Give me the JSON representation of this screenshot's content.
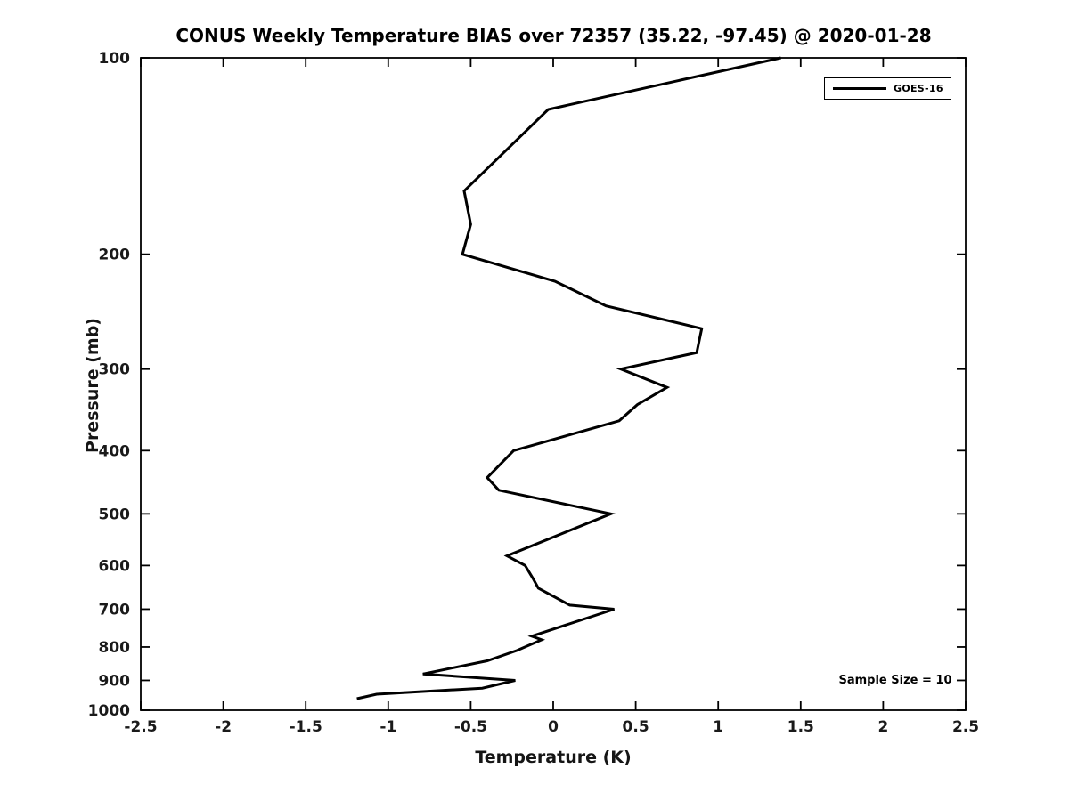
{
  "chart_data": {
    "type": "line",
    "title": "CONUS Weekly Temperature BIAS over 72357 (35.22, -97.45) @ 2020-01-28",
    "xlabel": "Temperature (K)",
    "ylabel": "Pressure (mb)",
    "xlim": [
      -2.5,
      2.5
    ],
    "ylim": [
      100,
      1000
    ],
    "y_scale": "log",
    "y_inverted": true,
    "grid": false,
    "box": true,
    "x_ticks": [
      -2.5,
      -2,
      -1.5,
      -1,
      -0.5,
      0,
      0.5,
      1,
      1.5,
      2,
      2.5
    ],
    "x_tick_labels": [
      "-2.5",
      "-2",
      "-1.5",
      "-1",
      "-0.5",
      "0",
      "0.5",
      "1",
      "1.5",
      "2",
      "2.5"
    ],
    "y_ticks": [
      100,
      200,
      300,
      400,
      500,
      600,
      700,
      800,
      900,
      1000
    ],
    "y_tick_labels": [
      "100",
      "200",
      "300",
      "400",
      "500",
      "600",
      "700",
      "800",
      "900",
      "1000"
    ],
    "line_color": "#000000",
    "line_width": 3,
    "legend": {
      "position": "top-right",
      "entries": [
        {
          "label": "GOES-16",
          "color": "#000000"
        }
      ]
    },
    "annotation": {
      "text": "Sample Size = 10"
    },
    "series": [
      {
        "name": "GOES-16",
        "color": "#000000",
        "points_format": "[temperature_bias_K, pressure_mb]",
        "points": [
          [
            1.38,
            100
          ],
          [
            -0.03,
            120
          ],
          [
            -0.54,
            160
          ],
          [
            -0.5,
            180
          ],
          [
            -0.55,
            200
          ],
          [
            0.01,
            220
          ],
          [
            0.32,
            240
          ],
          [
            0.9,
            260
          ],
          [
            0.87,
            283
          ],
          [
            0.41,
            300
          ],
          [
            0.69,
            320
          ],
          [
            0.51,
            340
          ],
          [
            0.4,
            360
          ],
          [
            -0.24,
            400
          ],
          [
            -0.4,
            440
          ],
          [
            -0.33,
            460
          ],
          [
            0.35,
            500
          ],
          [
            -0.28,
            580
          ],
          [
            -0.17,
            600
          ],
          [
            -0.12,
            630
          ],
          [
            -0.09,
            650
          ],
          [
            0.1,
            690
          ],
          [
            0.37,
            700
          ],
          [
            -0.13,
            770
          ],
          [
            -0.07,
            780
          ],
          [
            -0.22,
            810
          ],
          [
            -0.4,
            840
          ],
          [
            -0.79,
            880
          ],
          [
            -0.23,
            900
          ],
          [
            -0.43,
            925
          ],
          [
            -1.07,
            945
          ],
          [
            -1.19,
            960
          ]
        ]
      }
    ]
  }
}
